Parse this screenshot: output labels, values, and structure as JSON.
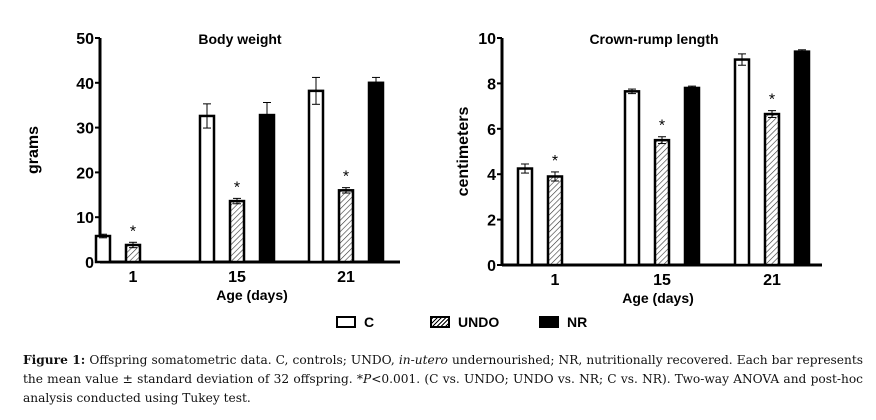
{
  "legend": {
    "items": [
      {
        "key": "C",
        "label": "C",
        "fill": "white"
      },
      {
        "key": "UNDO",
        "label": "UNDO",
        "fill": "hatched"
      },
      {
        "key": "NR",
        "label": "NR",
        "fill": "#000000"
      }
    ]
  },
  "caption": {
    "label": "Figure 1:",
    "part1": " Offspring somatometric data. C, controls; UNDO, ",
    "italic1": "in-utero",
    "part2": " undernourished; NR, nutritionally recovered. Each bar represents the mean value ± standard deviation of 32 offspring. *",
    "italic2": "P",
    "part3": "<0.001. (C vs. UNDO; UNDO vs. NR; C vs. NR).  Two-way ANOVA and post-hoc analysis conducted using Tukey test."
  },
  "chart_data": [
    {
      "type": "bar",
      "title": "Body weight",
      "xlabel": "Age (days)",
      "ylabel": "grams",
      "categories": [
        "1",
        "15",
        "21"
      ],
      "ylim": [
        0,
        50
      ],
      "yticks": [
        0,
        10,
        20,
        30,
        40,
        50
      ],
      "grid": false,
      "series": [
        {
          "name": "C",
          "values": [
            5.8,
            32.6,
            38.2
          ],
          "errors": [
            0.4,
            2.7,
            3.0
          ]
        },
        {
          "name": "UNDO",
          "values": [
            3.8,
            13.6,
            16.0
          ],
          "errors": [
            0.6,
            0.6,
            0.6
          ]
        },
        {
          "name": "NR",
          "values": [
            null,
            32.8,
            40.0
          ],
          "errors": [
            null,
            2.8,
            1.2
          ]
        }
      ],
      "annotations": [
        {
          "category": "1",
          "series": "UNDO",
          "text": "*"
        },
        {
          "category": "15",
          "series": "UNDO",
          "text": "*"
        },
        {
          "category": "21",
          "series": "UNDO",
          "text": "*"
        }
      ]
    },
    {
      "type": "bar",
      "title": "Crown-rump length",
      "xlabel": "Age (days)",
      "ylabel": "centimeters",
      "categories": [
        "1",
        "15",
        "21"
      ],
      "ylim": [
        0,
        10
      ],
      "yticks": [
        0,
        2,
        4,
        6,
        8,
        10
      ],
      "grid": false,
      "series": [
        {
          "name": "C",
          "values": [
            4.25,
            7.65,
            9.05
          ],
          "errors": [
            0.2,
            0.1,
            0.25
          ]
        },
        {
          "name": "UNDO",
          "values": [
            3.9,
            5.5,
            6.65
          ],
          "errors": [
            0.2,
            0.15,
            0.15
          ]
        },
        {
          "name": "NR",
          "values": [
            null,
            7.8,
            9.4
          ],
          "errors": [
            null,
            0.08,
            0.08
          ]
        }
      ],
      "annotations": [
        {
          "category": "1",
          "series": "UNDO",
          "text": "*"
        },
        {
          "category": "15",
          "series": "UNDO",
          "text": "*"
        },
        {
          "category": "21",
          "series": "UNDO",
          "text": "*"
        }
      ]
    }
  ]
}
